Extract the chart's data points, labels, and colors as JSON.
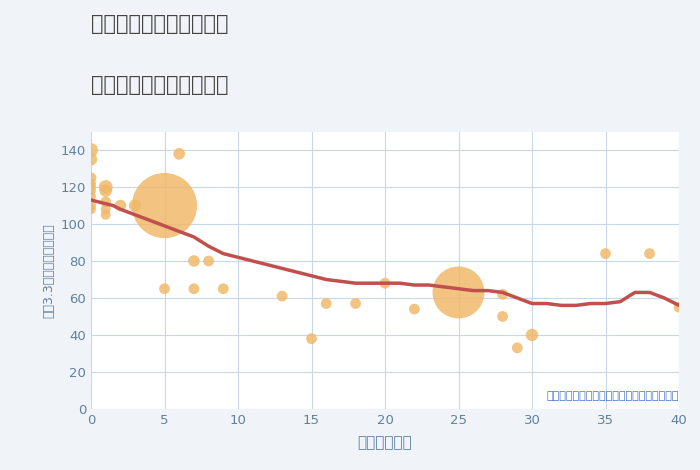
{
  "title_line1": "福岡県福岡市西区北原の",
  "title_line2": "築年数別中古戸建て価格",
  "xlabel": "築年数（年）",
  "ylabel": "坪（3.3㎡）単価（万円）",
  "fig_bg_color": "#f0f4f8",
  "plot_bg_color": "#ffffff",
  "xlim": [
    0,
    40
  ],
  "ylim": [
    0,
    150
  ],
  "xticks": [
    0,
    5,
    10,
    15,
    20,
    25,
    30,
    35,
    40
  ],
  "yticks": [
    0,
    20,
    40,
    60,
    80,
    100,
    120,
    140
  ],
  "bubble_color": "#f0b96b",
  "bubble_edge_color": "#e8a84a",
  "line_color": "#c0504d",
  "annotation_text": "円の大きさは、取引のあった物件面積を示す",
  "annotation_color": "#4472c4",
  "grid_color": "#c8d8e8",
  "tick_color": "#6080a0",
  "label_color": "#6080a0",
  "scatter_x": [
    0,
    0,
    0,
    0,
    0,
    0,
    0,
    0,
    0,
    1,
    1,
    1,
    1,
    1,
    2,
    3,
    5,
    5,
    6,
    7,
    7,
    8,
    9,
    13,
    15,
    16,
    18,
    20,
    22,
    25,
    28,
    28,
    29,
    30,
    35,
    38,
    40
  ],
  "scatter_y": [
    140,
    135,
    125,
    122,
    120,
    118,
    115,
    110,
    108,
    120,
    118,
    112,
    108,
    105,
    110,
    110,
    110,
    65,
    138,
    80,
    65,
    80,
    65,
    61,
    38,
    57,
    57,
    68,
    54,
    63,
    62,
    50,
    33,
    40,
    84,
    84,
    55
  ],
  "scatter_size": [
    100,
    80,
    60,
    50,
    50,
    50,
    50,
    50,
    50,
    100,
    80,
    60,
    50,
    50,
    70,
    80,
    2200,
    60,
    70,
    70,
    60,
    60,
    60,
    60,
    60,
    60,
    60,
    60,
    60,
    1400,
    60,
    60,
    60,
    80,
    60,
    60,
    60
  ],
  "line_x": [
    0,
    0.5,
    1,
    1.5,
    2,
    3,
    4,
    5,
    6,
    7,
    8,
    9,
    10,
    11,
    12,
    13,
    14,
    15,
    16,
    17,
    18,
    19,
    20,
    21,
    22,
    23,
    24,
    25,
    26,
    27,
    28,
    29,
    30,
    31,
    32,
    33,
    34,
    35,
    36,
    37,
    38,
    39,
    40
  ],
  "line_y": [
    113,
    112,
    111,
    110,
    108,
    105,
    102,
    99,
    96,
    93,
    88,
    84,
    82,
    80,
    78,
    76,
    74,
    72,
    70,
    69,
    68,
    68,
    68,
    68,
    67,
    67,
    66,
    65,
    64,
    64,
    63,
    60,
    57,
    57,
    56,
    56,
    57,
    57,
    58,
    63,
    63,
    60,
    56
  ]
}
